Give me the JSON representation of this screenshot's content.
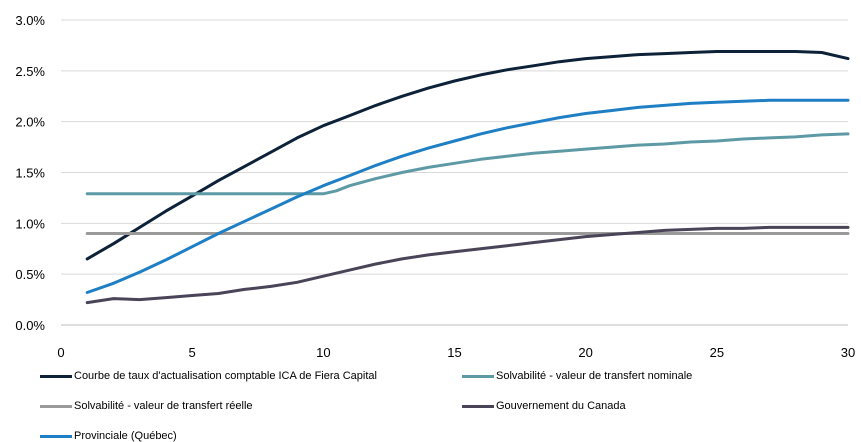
{
  "chart_data": {
    "type": "line",
    "title": "",
    "xlabel": "",
    "ylabel": "",
    "xlim": [
      0,
      30
    ],
    "ylim": [
      0,
      3.0
    ],
    "x_ticks": [
      0,
      5,
      10,
      15,
      20,
      25,
      30
    ],
    "y_ticks": [
      "0.0%",
      "0.5%",
      "1.0%",
      "1.5%",
      "2.0%",
      "2.5%",
      "3.0%"
    ],
    "grid": "horizontal",
    "legend_position": "bottom",
    "series": [
      {
        "name": "Courbe de taux d'actualisation comptable ICA de Fiera Capital",
        "color": "#0d2238",
        "x": [
          1,
          2,
          3,
          4,
          5,
          6,
          7,
          8,
          9,
          10,
          11,
          12,
          13,
          14,
          15,
          16,
          17,
          18,
          19,
          20,
          21,
          22,
          23,
          24,
          25,
          26,
          27,
          28,
          29,
          30
        ],
        "y": [
          0.65,
          0.8,
          0.96,
          1.12,
          1.27,
          1.42,
          1.56,
          1.7,
          1.84,
          1.96,
          2.06,
          2.16,
          2.25,
          2.33,
          2.4,
          2.46,
          2.51,
          2.55,
          2.59,
          2.62,
          2.64,
          2.66,
          2.67,
          2.68,
          2.69,
          2.69,
          2.69,
          2.69,
          2.68,
          2.62
        ]
      },
      {
        "name": "Solvabilité - valeur de transfert nominale",
        "color": "#5e9aa5",
        "x": [
          1,
          2,
          3,
          4,
          5,
          6,
          7,
          8,
          9,
          10,
          10.5,
          11,
          12,
          13,
          14,
          15,
          16,
          17,
          18,
          19,
          20,
          21,
          22,
          23,
          24,
          25,
          26,
          27,
          28,
          29,
          30
        ],
        "y": [
          1.29,
          1.29,
          1.29,
          1.29,
          1.29,
          1.29,
          1.29,
          1.29,
          1.29,
          1.29,
          1.32,
          1.37,
          1.44,
          1.5,
          1.55,
          1.59,
          1.63,
          1.66,
          1.69,
          1.71,
          1.73,
          1.75,
          1.77,
          1.78,
          1.8,
          1.81,
          1.83,
          1.84,
          1.85,
          1.87,
          1.88
        ]
      },
      {
        "name": "Solvabilité - valeur de transfert réelle",
        "color": "#9a9a9a",
        "x": [
          1,
          30
        ],
        "y": [
          0.9,
          0.9
        ]
      },
      {
        "name": "Gouvernement du Canada",
        "color": "#4a4458",
        "x": [
          1,
          2,
          3,
          4,
          5,
          6,
          7,
          8,
          9,
          10,
          11,
          12,
          13,
          14,
          15,
          16,
          17,
          18,
          19,
          20,
          21,
          22,
          23,
          24,
          25,
          26,
          27,
          28,
          29,
          30
        ],
        "y": [
          0.22,
          0.26,
          0.25,
          0.27,
          0.29,
          0.31,
          0.35,
          0.38,
          0.42,
          0.48,
          0.54,
          0.6,
          0.65,
          0.69,
          0.72,
          0.75,
          0.78,
          0.81,
          0.84,
          0.87,
          0.89,
          0.91,
          0.93,
          0.94,
          0.95,
          0.95,
          0.96,
          0.96,
          0.96,
          0.96
        ]
      },
      {
        "name": "Provinciale (Québec)",
        "color": "#1f7fc4",
        "x": [
          1,
          2,
          3,
          4,
          5,
          6,
          7,
          8,
          9,
          10,
          11,
          12,
          13,
          14,
          15,
          16,
          17,
          18,
          19,
          20,
          21,
          22,
          23,
          24,
          25,
          26,
          27,
          28,
          29,
          30
        ],
        "y": [
          0.32,
          0.41,
          0.52,
          0.64,
          0.77,
          0.9,
          1.02,
          1.14,
          1.26,
          1.37,
          1.47,
          1.57,
          1.66,
          1.74,
          1.81,
          1.88,
          1.94,
          1.99,
          2.04,
          2.08,
          2.11,
          2.14,
          2.16,
          2.18,
          2.19,
          2.2,
          2.21,
          2.21,
          2.21,
          2.21
        ]
      }
    ]
  }
}
